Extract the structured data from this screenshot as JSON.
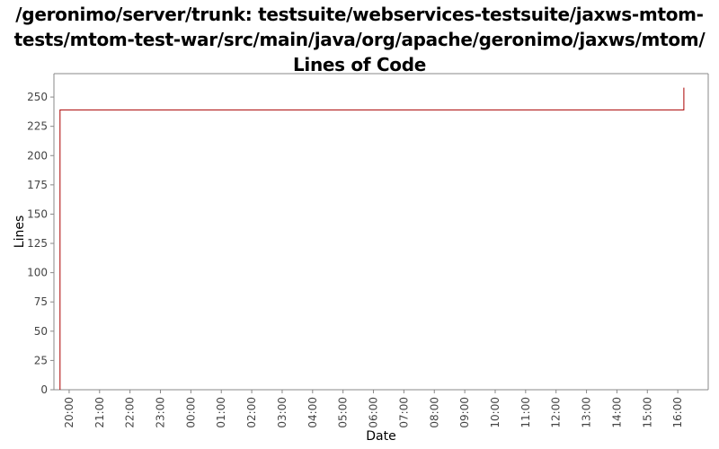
{
  "title_lines": [
    "/geronimo/server/trunk: testsuite/webservices-testsuite/jaxws-mtom-",
    "tests/mtom-test-war/src/main/java/org/apache/geronimo/jaxws/mtom/",
    "Lines of Code"
  ],
  "colors": {
    "series": "#aa0000",
    "axis": "#888888",
    "background": "#ffffff"
  },
  "chart_data": {
    "type": "line",
    "title": "/geronimo/server/trunk: testsuite/webservices-testsuite/jaxws-mtom-tests/mtom-test-war/src/main/java/org/apache/geronimo/jaxws/mtom/ Lines of Code",
    "xlabel": "Date",
    "ylabel": "Lines",
    "x_ticks": [
      "20:00",
      "21:00",
      "22:00",
      "23:00",
      "00:00",
      "01:00",
      "02:00",
      "03:00",
      "04:00",
      "05:00",
      "06:00",
      "07:00",
      "08:00",
      "09:00",
      "10:00",
      "11:00",
      "12:00",
      "13:00",
      "14:00",
      "15:00",
      "16:00"
    ],
    "x_ticks_hours": [
      20,
      21,
      22,
      23,
      24,
      25,
      26,
      27,
      28,
      29,
      30,
      31,
      32,
      33,
      34,
      35,
      36,
      37,
      38,
      39,
      40
    ],
    "xlim_hours": [
      19.5,
      41.0
    ],
    "y_ticks": [
      0,
      25,
      50,
      75,
      100,
      125,
      150,
      175,
      200,
      225,
      250
    ],
    "ylim": [
      0,
      270
    ],
    "step": true,
    "grid": false,
    "series": [
      {
        "x_hours": [
          19.7,
          19.7,
          40.2,
          40.2
        ],
        "values": [
          0,
          239,
          239,
          258
        ]
      }
    ]
  }
}
